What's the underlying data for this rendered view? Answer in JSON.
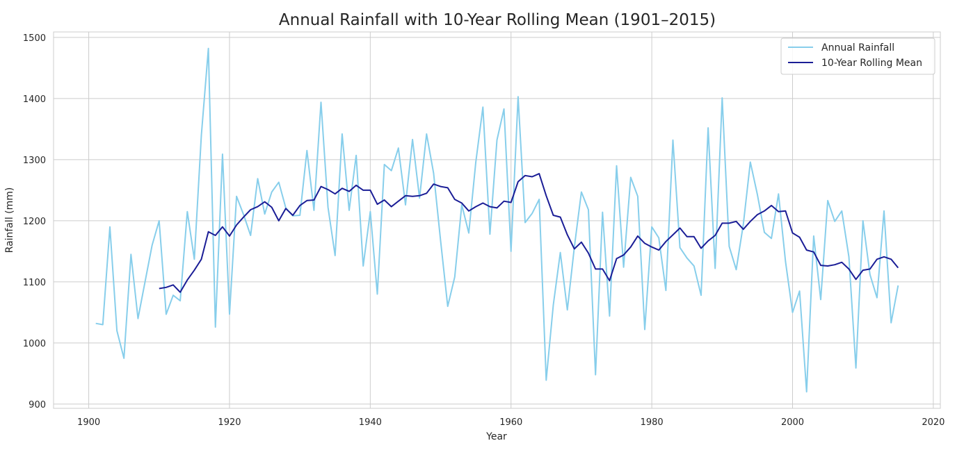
{
  "chart_data": {
    "type": "line",
    "title": "Annual Rainfall with 10-Year Rolling Mean (1901–2015)",
    "xlabel": "Year",
    "ylabel": "Rainfall (mm)",
    "xlim": [
      1895,
      2021
    ],
    "ylim": [
      893,
      1509
    ],
    "xticks": [
      1900,
      1920,
      1940,
      1960,
      1980,
      2000,
      2020
    ],
    "yticks": [
      900,
      1000,
      1100,
      1200,
      1300,
      1400,
      1500
    ],
    "grid": true,
    "legend_position": "top-right",
    "series": [
      {
        "name": "Annual Rainfall",
        "color": "#87ceeb",
        "x": [
          1901,
          1902,
          1903,
          1904,
          1905,
          1906,
          1907,
          1908,
          1909,
          1910,
          1911,
          1912,
          1913,
          1914,
          1915,
          1916,
          1917,
          1918,
          1919,
          1920,
          1921,
          1922,
          1923,
          1924,
          1925,
          1926,
          1927,
          1928,
          1929,
          1930,
          1931,
          1932,
          1933,
          1934,
          1935,
          1936,
          1937,
          1938,
          1939,
          1940,
          1941,
          1942,
          1943,
          1944,
          1945,
          1946,
          1947,
          1948,
          1949,
          1950,
          1951,
          1952,
          1953,
          1954,
          1955,
          1956,
          1957,
          1958,
          1959,
          1960,
          1961,
          1962,
          1963,
          1964,
          1965,
          1966,
          1967,
          1968,
          1969,
          1970,
          1971,
          1972,
          1973,
          1974,
          1975,
          1976,
          1977,
          1978,
          1979,
          1980,
          1981,
          1982,
          1983,
          1984,
          1985,
          1986,
          1987,
          1988,
          1989,
          1990,
          1991,
          1992,
          1993,
          1994,
          1995,
          1996,
          1997,
          1998,
          1999,
          2000,
          2001,
          2002,
          2003,
          2004,
          2005,
          2006,
          2007,
          2008,
          2009,
          2010,
          2011,
          2012,
          2013,
          2014,
          2015
        ],
        "values": [
          1032,
          1030,
          1190,
          1020,
          975,
          1145,
          1040,
          1100,
          1160,
          1200,
          1047,
          1078,
          1069,
          1215,
          1137,
          1340,
          1482,
          1026,
          1309,
          1047,
          1240,
          1210,
          1176,
          1269,
          1211,
          1247,
          1263,
          1221,
          1208,
          1209,
          1315,
          1217,
          1394,
          1222,
          1143,
          1342,
          1217,
          1307,
          1126,
          1215,
          1080,
          1292,
          1282,
          1319,
          1226,
          1333,
          1237,
          1342,
          1278,
          1167,
          1060,
          1108,
          1226,
          1180,
          1296,
          1386,
          1178,
          1332,
          1383,
          1150,
          1403,
          1197,
          1212,
          1235,
          939,
          1062,
          1148,
          1054,
          1157,
          1247,
          1218,
          948,
          1214,
          1044,
          1290,
          1124,
          1271,
          1240,
          1022,
          1190,
          1172,
          1086,
          1332,
          1156,
          1139,
          1126,
          1078,
          1352,
          1122,
          1401,
          1158,
          1120,
          1194,
          1296,
          1243,
          1181,
          1171,
          1244,
          1133,
          1050,
          1085,
          920,
          1175,
          1071,
          1233,
          1199,
          1216,
          1141,
          959,
          1200,
          1112,
          1074,
          1216,
          1033,
          1094
        ]
      },
      {
        "name": "10-Year Rolling Mean",
        "color": "#1a1d96",
        "x": [
          1910,
          1911,
          1912,
          1913,
          1914,
          1915,
          1916,
          1917,
          1918,
          1919,
          1920,
          1921,
          1922,
          1923,
          1924,
          1925,
          1926,
          1927,
          1928,
          1929,
          1930,
          1931,
          1932,
          1933,
          1934,
          1935,
          1936,
          1937,
          1938,
          1939,
          1940,
          1941,
          1942,
          1943,
          1944,
          1945,
          1946,
          1947,
          1948,
          1949,
          1950,
          1951,
          1952,
          1953,
          1954,
          1955,
          1956,
          1957,
          1958,
          1959,
          1960,
          1961,
          1962,
          1963,
          1964,
          1965,
          1966,
          1967,
          1968,
          1969,
          1970,
          1971,
          1972,
          1973,
          1974,
          1975,
          1976,
          1977,
          1978,
          1979,
          1980,
          1981,
          1982,
          1983,
          1984,
          1985,
          1986,
          1987,
          1988,
          1989,
          1990,
          1991,
          1992,
          1993,
          1994,
          1995,
          1996,
          1997,
          1998,
          1999,
          2000,
          2001,
          2002,
          2003,
          2004,
          2005,
          2006,
          2007,
          2008,
          2009,
          2010,
          2011,
          2012,
          2013,
          2014,
          2015
        ],
        "values": [
          1089,
          1091,
          1095,
          1083,
          1103,
          1119,
          1137,
          1182,
          1176,
          1190,
          1175,
          1193,
          1206,
          1218,
          1223,
          1231,
          1222,
          1200,
          1220,
          1209,
          1225,
          1233,
          1234,
          1256,
          1251,
          1244,
          1253,
          1248,
          1258,
          1250,
          1250,
          1227,
          1234,
          1223,
          1232,
          1241,
          1240,
          1241,
          1245,
          1260,
          1256,
          1254,
          1235,
          1229,
          1216,
          1223,
          1229,
          1223,
          1221,
          1232,
          1230,
          1264,
          1274,
          1272,
          1277,
          1241,
          1209,
          1206,
          1177,
          1154,
          1165,
          1147,
          1121,
          1121,
          1102,
          1138,
          1144,
          1157,
          1175,
          1163,
          1157,
          1152,
          1166,
          1177,
          1188,
          1174,
          1174,
          1155,
          1167,
          1176,
          1196,
          1196,
          1199,
          1186,
          1199,
          1210,
          1216,
          1225,
          1215,
          1216,
          1180,
          1173,
          1152,
          1149,
          1127,
          1126,
          1128,
          1132,
          1121,
          1104,
          1119,
          1121,
          1137,
          1141,
          1137,
          1123
        ]
      }
    ]
  }
}
